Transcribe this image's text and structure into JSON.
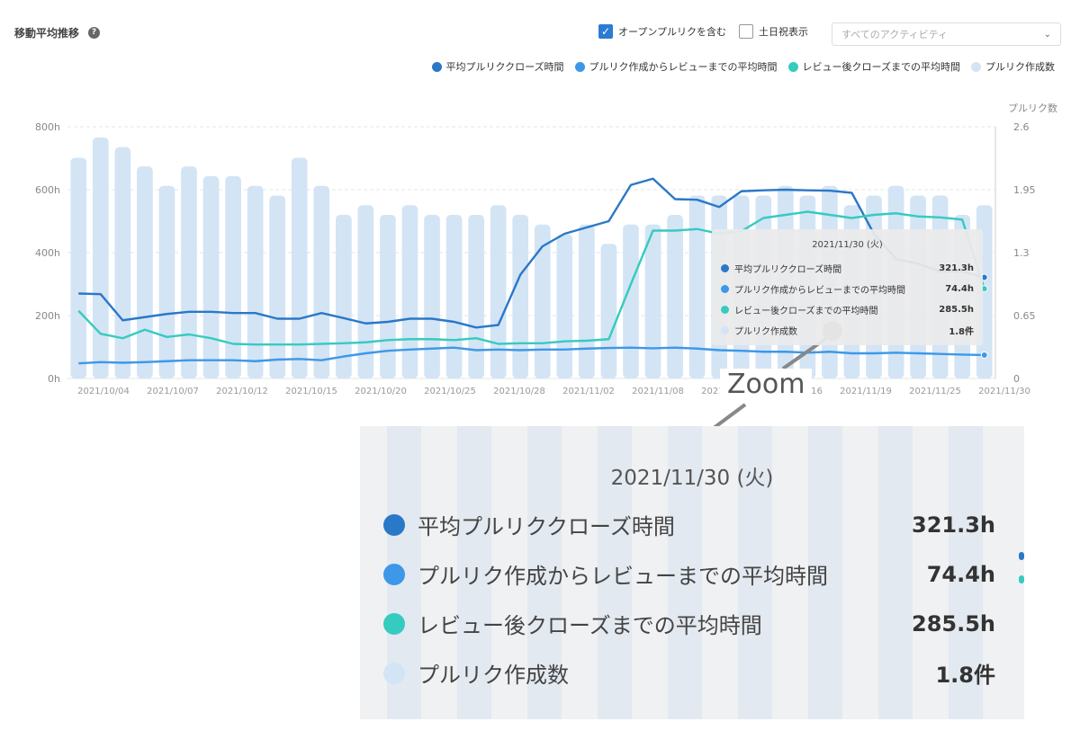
{
  "header": {
    "title": "移動平均推移",
    "help_icon": "?",
    "checkbox_open_pr": {
      "label": "オープンプルリクを含む",
      "checked": true
    },
    "checkbox_weekend": {
      "label": "土日祝表示",
      "checked": false
    },
    "activity_select": {
      "value": "すべてのアクティビティ"
    }
  },
  "colors": {
    "close_time": "#2a78c8",
    "review_time": "#3d98e8",
    "after_review": "#36cbbf",
    "pr_count": "#d3e4f5"
  },
  "chart_data": {
    "type": "bar+line",
    "title": "",
    "x_tick_labels": [
      "2021/10/04",
      "2021/10/07",
      "2021/10/12",
      "2021/10/15",
      "2021/10/20",
      "2021/10/25",
      "2021/10/28",
      "2021/11/02",
      "2021/11/08",
      "2021/11/11",
      "2021/11/16",
      "2021/11/19",
      "2021/11/25",
      "2021/11/30"
    ],
    "y_left": {
      "ticks": [
        "0h",
        "200h",
        "400h",
        "600h",
        "800h"
      ],
      "range": [
        0,
        800
      ]
    },
    "y_right": {
      "label": "プルリク数",
      "ticks": [
        "0",
        "0.65",
        "1.3",
        "1.95",
        "2.6"
      ],
      "range": [
        0,
        2.6
      ]
    },
    "legend": [
      "平均プルリククローズ時間",
      "プルリク作成からレビューまでの平均時間",
      "レビュー後クローズまでの平均時間",
      "プルリク作成数"
    ],
    "bars": {
      "name": "プルリク作成数",
      "values": [
        2.28,
        2.49,
        2.39,
        2.19,
        1.99,
        2.19,
        2.09,
        2.09,
        1.99,
        1.89,
        2.28,
        1.99,
        1.69,
        1.79,
        1.69,
        1.79,
        1.69,
        1.69,
        1.69,
        1.79,
        1.69,
        1.59,
        1.49,
        1.59,
        1.39,
        1.59,
        1.59,
        1.69,
        1.89,
        1.89,
        1.89,
        1.89,
        1.99,
        1.89,
        1.99,
        1.79,
        1.89,
        1.99,
        1.89,
        1.89,
        1.69,
        1.79
      ]
    },
    "series": [
      {
        "name": "平均プルリククローズ時間",
        "values": [
          270,
          268,
          185,
          195,
          205,
          212,
          212,
          208,
          208,
          190,
          190,
          208,
          192,
          175,
          180,
          190,
          190,
          180,
          162,
          170,
          330,
          420,
          460,
          480,
          500,
          615,
          635,
          570,
          568,
          545,
          595,
          598,
          600,
          598,
          597,
          590,
          460,
          380,
          365,
          340,
          340,
          321.3
        ]
      },
      {
        "name": "プルリク作成からレビューまでの平均時間",
        "values": [
          48,
          52,
          50,
          52,
          55,
          58,
          58,
          58,
          55,
          60,
          62,
          58,
          70,
          80,
          88,
          92,
          95,
          98,
          90,
          92,
          90,
          92,
          92,
          95,
          97,
          98,
          96,
          98,
          95,
          90,
          88,
          85,
          85,
          82,
          85,
          80,
          80,
          82,
          80,
          78,
          76,
          74.4
        ]
      },
      {
        "name": "レビュー後クローズまでの平均時間",
        "values": [
          215,
          142,
          128,
          155,
          132,
          140,
          128,
          110,
          108,
          108,
          108,
          110,
          112,
          115,
          122,
          125,
          125,
          122,
          128,
          110,
          112,
          112,
          118,
          120,
          125,
          300,
          470,
          470,
          475,
          460,
          468,
          510,
          520,
          530,
          520,
          510,
          520,
          525,
          515,
          512,
          505,
          285.5
        ]
      }
    ]
  },
  "tooltip": {
    "date": "2021/11/30 (火)",
    "rows": [
      {
        "label": "平均プルリククローズ時間",
        "value": "321.3h"
      },
      {
        "label": "プルリク作成からレビューまでの平均時間",
        "value": "74.4h"
      },
      {
        "label": "レビュー後クローズまでの平均時間",
        "value": "285.5h"
      },
      {
        "label": "プルリク作成数",
        "value": "1.8件"
      }
    ]
  },
  "zoom": {
    "label": "Zoom"
  }
}
